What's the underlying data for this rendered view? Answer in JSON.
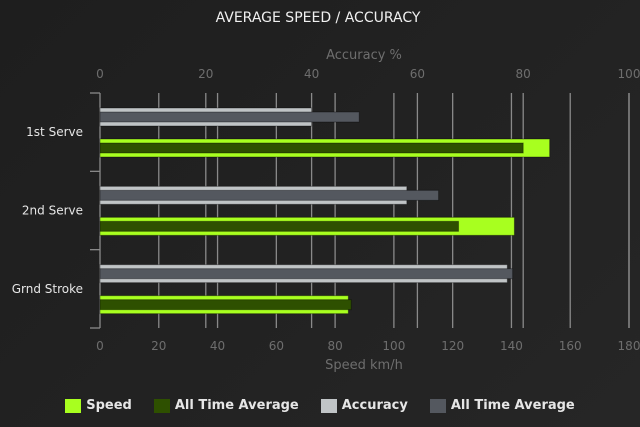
{
  "chart_data": {
    "type": "bar",
    "orientation": "horizontal",
    "title": "AVERAGE SPEED / ACCURACY",
    "categories": [
      "1st Serve",
      "2nd Serve",
      "Grnd Stroke"
    ],
    "axes": {
      "top": {
        "label": "Accuracy %",
        "range": [
          0,
          100
        ],
        "ticks": [
          "0",
          "20",
          "40",
          "60",
          "80",
          "100"
        ]
      },
      "bottom": {
        "label": "Speed km/h",
        "range": [
          0,
          180
        ],
        "ticks": [
          "0",
          "20",
          "40",
          "60",
          "80",
          "100",
          "120",
          "140",
          "160",
          "180"
        ]
      }
    },
    "grid": true,
    "legend_position": "bottom",
    "series": [
      {
        "name": "Speed",
        "axis": "bottom",
        "color": "#a8ff1f",
        "values": [
          153,
          141,
          84.5
        ]
      },
      {
        "name": "All Time Average",
        "axis": "bottom",
        "color": "#2e5000",
        "values": [
          144,
          122,
          85.5
        ]
      },
      {
        "name": "Accuracy",
        "axis": "top",
        "color": "#c0c4c6",
        "values": [
          40,
          58,
          77
        ]
      },
      {
        "name": "All Time Average",
        "axis": "top",
        "color": "#54585f",
        "values": [
          49,
          64,
          78
        ]
      }
    ]
  }
}
